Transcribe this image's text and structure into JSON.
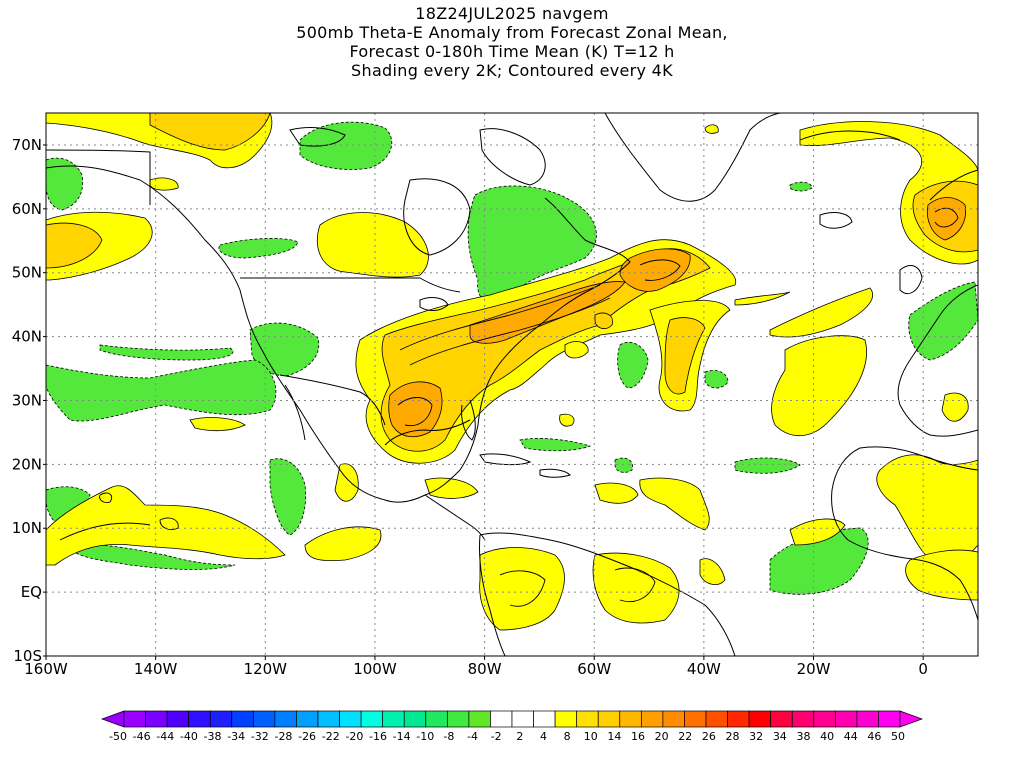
{
  "header": {
    "line1": "18Z24JUL2025 navgem",
    "line2": "500mb Theta-E Anomaly from Forecast Zonal Mean,",
    "line3": "Forecast 0-180h Time Mean (K) T=12 h",
    "line4": "Shading every 2K; Contoured every 4K"
  },
  "map": {
    "projection": "cylindrical-equidistant",
    "lon_range": [
      -160,
      10
    ],
    "lat_range": [
      -10,
      75
    ],
    "lat_labels": [
      "70N",
      "60N",
      "50N",
      "40N",
      "30N",
      "20N",
      "10N",
      "EQ",
      "10S"
    ],
    "lat_values": [
      70,
      60,
      50,
      40,
      30,
      20,
      10,
      0,
      -10
    ],
    "lon_labels": [
      "160W",
      "140W",
      "120W",
      "100W",
      "80W",
      "60W",
      "40W",
      "20W",
      "0"
    ],
    "lon_values": [
      -160,
      -140,
      -120,
      -100,
      -80,
      -60,
      -40,
      -20,
      0
    ],
    "grid": true,
    "grid_style": "dotted",
    "colors": {
      "land_outline": "#000000",
      "negative_green": "#55e83c",
      "pos_yellow": "#ffff00",
      "pos_gold": "#ffd400",
      "pos_orange": "#ffaa00",
      "pos_dark_orange": "#ff8c00"
    }
  },
  "colorbar": {
    "labels": [
      "-50",
      "-46",
      "-44",
      "-40",
      "-38",
      "-34",
      "-32",
      "-28",
      "-26",
      "-22",
      "-20",
      "-16",
      "-14",
      "-10",
      "-8",
      "-4",
      "-2",
      "2",
      "4",
      "8",
      "10",
      "14",
      "16",
      "20",
      "22",
      "26",
      "28",
      "32",
      "34",
      "38",
      "40",
      "44",
      "46",
      "50"
    ],
    "colors": [
      "#9a00ff",
      "#7a00ff",
      "#5000ff",
      "#3010ff",
      "#1e1eff",
      "#0040ff",
      "#0060ff",
      "#0080ff",
      "#00a0ff",
      "#00c0ff",
      "#00e0ff",
      "#00ffe0",
      "#00f0b0",
      "#00e890",
      "#20e860",
      "#40e840",
      "#60e828",
      "#ffffff",
      "#ffffff",
      "#ffffff",
      "#ffff00",
      "#ffe000",
      "#ffd000",
      "#ffb800",
      "#ffa000",
      "#ff8c00",
      "#ff7000",
      "#ff5000",
      "#ff2800",
      "#ff0000",
      "#ff0040",
      "#ff0070",
      "#ff0090",
      "#ff00b0",
      "#ff00d0",
      "#ff00f0"
    ]
  }
}
